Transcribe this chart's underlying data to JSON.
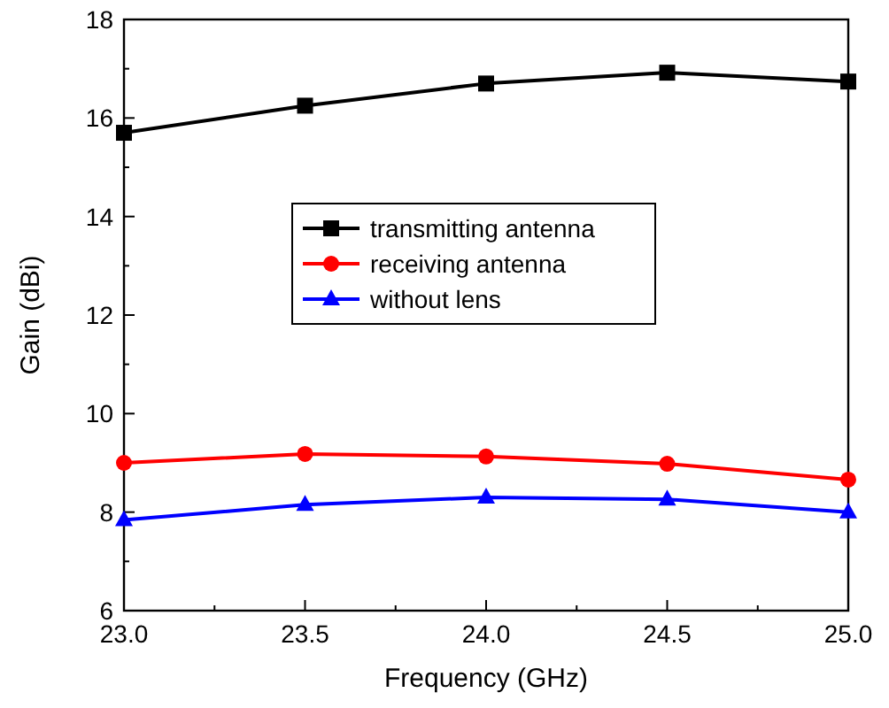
{
  "chart_data": {
    "type": "line",
    "xlabel": "Frequency (GHz)",
    "ylabel": "Gain (dBi)",
    "x": [
      23.0,
      23.5,
      24.0,
      24.5,
      25.0
    ],
    "xlim": [
      23,
      25
    ],
    "xticks": [
      {
        "value": 23,
        "label": "23.0"
      },
      {
        "value": 23.5,
        "label": "23.5"
      },
      {
        "value": 24,
        "label": "24.0"
      },
      {
        "value": 24.5,
        "label": "24.5"
      },
      {
        "value": 25,
        "label": "25.0"
      }
    ],
    "ylim": [
      6,
      18
    ],
    "yticks": [
      6,
      8,
      10,
      12,
      14,
      16,
      18
    ],
    "grid": false,
    "legend": "center",
    "line_style": "solid",
    "series": [
      {
        "name": "transmitting antenna",
        "color": "#000000",
        "marker": "square",
        "values": [
          15.7,
          16.25,
          16.7,
          16.92,
          16.74
        ]
      },
      {
        "name": "receiving antenna",
        "color": "#ff0000",
        "marker": "circle",
        "values": [
          9.0,
          9.18,
          9.13,
          8.98,
          8.66
        ]
      },
      {
        "name": "without lens",
        "color": "#0000ff",
        "marker": "triangle",
        "values": [
          7.84,
          8.15,
          8.3,
          8.26,
          8.0
        ]
      }
    ]
  }
}
